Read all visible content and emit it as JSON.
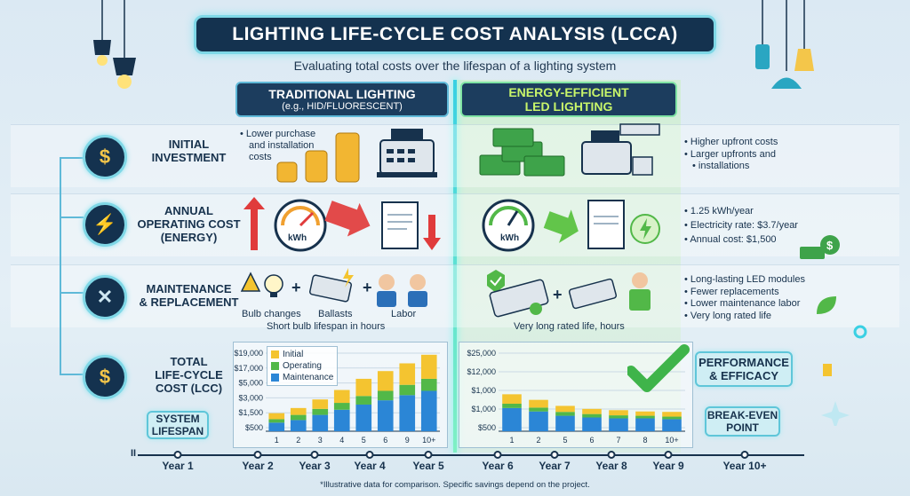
{
  "title": "LIGHTING LIFE-CYCLE COST ANALYSIS (LCCA)",
  "subtitle": "Evaluating total costs over the lifespan of a lighting system",
  "columns": {
    "left": {
      "title": "TRADITIONAL LIGHTING",
      "subtitle": "(e.g., HID/FLUORESCENT)"
    },
    "right": {
      "title_line1": "ENERGY-EFFICIENT",
      "title_line2": "LED LIGHTING"
    }
  },
  "categories": [
    {
      "line1": "INITIAL",
      "line2": "INVESTMENT",
      "line3": ""
    },
    {
      "line1": "ANNUAL",
      "line2": "OPERATING COST",
      "line3": "(ENERGY)"
    },
    {
      "line1": "MAINTENANCE",
      "line2": "& REPLACEMENT",
      "line3": ""
    },
    {
      "line1": "TOTAL",
      "line2": "LIFE-CYCLE",
      "line3": "COST (LCC)"
    }
  ],
  "initial": {
    "left_note": [
      "• Lower purchase",
      "and installation",
      "costs"
    ],
    "right_bullets": [
      "Higher upfront costs",
      "Larger upfronts and",
      "installations"
    ]
  },
  "operating": {
    "meter_label": "kWh",
    "right_bullets": [
      "1.25 kWh/year",
      "Electricity rate: $3.7/year",
      "Annual cost: $1,500"
    ]
  },
  "maintenance": {
    "left_labels": [
      "Bulb changes",
      "Ballasts",
      "Labor"
    ],
    "left_note": "Short bulb lifespan in hours",
    "right_note": "Very long rated life, hours",
    "right_bullets": [
      "Long-lasting LED modules",
      "Fewer replacements",
      "Lower maintenance labor",
      "Very long rated life"
    ]
  },
  "system_lifespan": {
    "line1": "SYSTEM",
    "line2": "LIFESPAN"
  },
  "performance": {
    "line1": "PERFORMANCE",
    "line2": "& EFFICACY"
  },
  "break_even": {
    "line1": "BREAK-EVEN",
    "line2": "POINT"
  },
  "timeline": [
    "Year 1",
    "Year 2",
    "Year 3",
    "Year 4",
    "Year 5",
    "Year 6",
    "Year 7",
    "Year 8",
    "Year 9",
    "Year 10+"
  ],
  "timeline_start": "II",
  "footnote": "*Illustrative data for comparison. Specific savings depend on the project.",
  "colors": {
    "initial": "#f4c430",
    "operating": "#52b848",
    "maintenance": "#2b86d6"
  },
  "chart_data": [
    {
      "type": "bar",
      "stacked": true,
      "categories": [
        "1",
        "2",
        "3",
        "4",
        "5",
        "6",
        "9",
        "10+"
      ],
      "tick_labels": [
        "$19,000",
        "$17,000",
        "$5,000",
        "$3,000",
        "$1,500",
        "$500"
      ],
      "series": [
        {
          "name": "Maintenance",
          "values": [
            1.0,
            1.3,
            1.9,
            2.5,
            3.1,
            3.6,
            4.2,
            4.7
          ]
        },
        {
          "name": "Operating",
          "values": [
            0.4,
            0.6,
            0.7,
            0.8,
            1.0,
            1.1,
            1.2,
            1.4
          ]
        },
        {
          "name": "Initial",
          "values": [
            0.7,
            0.8,
            1.1,
            1.5,
            2.0,
            2.3,
            2.5,
            2.8
          ]
        }
      ],
      "legend": [
        "Initial",
        "Operating",
        "Maintenance"
      ],
      "legend_position": "top-left"
    },
    {
      "type": "bar",
      "stacked": true,
      "categories": [
        "1",
        "2",
        "5",
        "6",
        "7",
        "8",
        "10+"
      ],
      "tick_labels": [
        "$25,000",
        "$12,000",
        "$1,000",
        "$1,000",
        "$500"
      ],
      "series": [
        {
          "name": "Maintenance",
          "values": [
            2.7,
            2.3,
            1.8,
            1.6,
            1.5,
            1.5,
            1.4
          ]
        },
        {
          "name": "Operating",
          "values": [
            0.5,
            0.45,
            0.45,
            0.4,
            0.35,
            0.3,
            0.3
          ]
        },
        {
          "name": "Initial",
          "values": [
            1.1,
            0.9,
            0.7,
            0.6,
            0.6,
            0.5,
            0.55
          ]
        }
      ]
    }
  ]
}
